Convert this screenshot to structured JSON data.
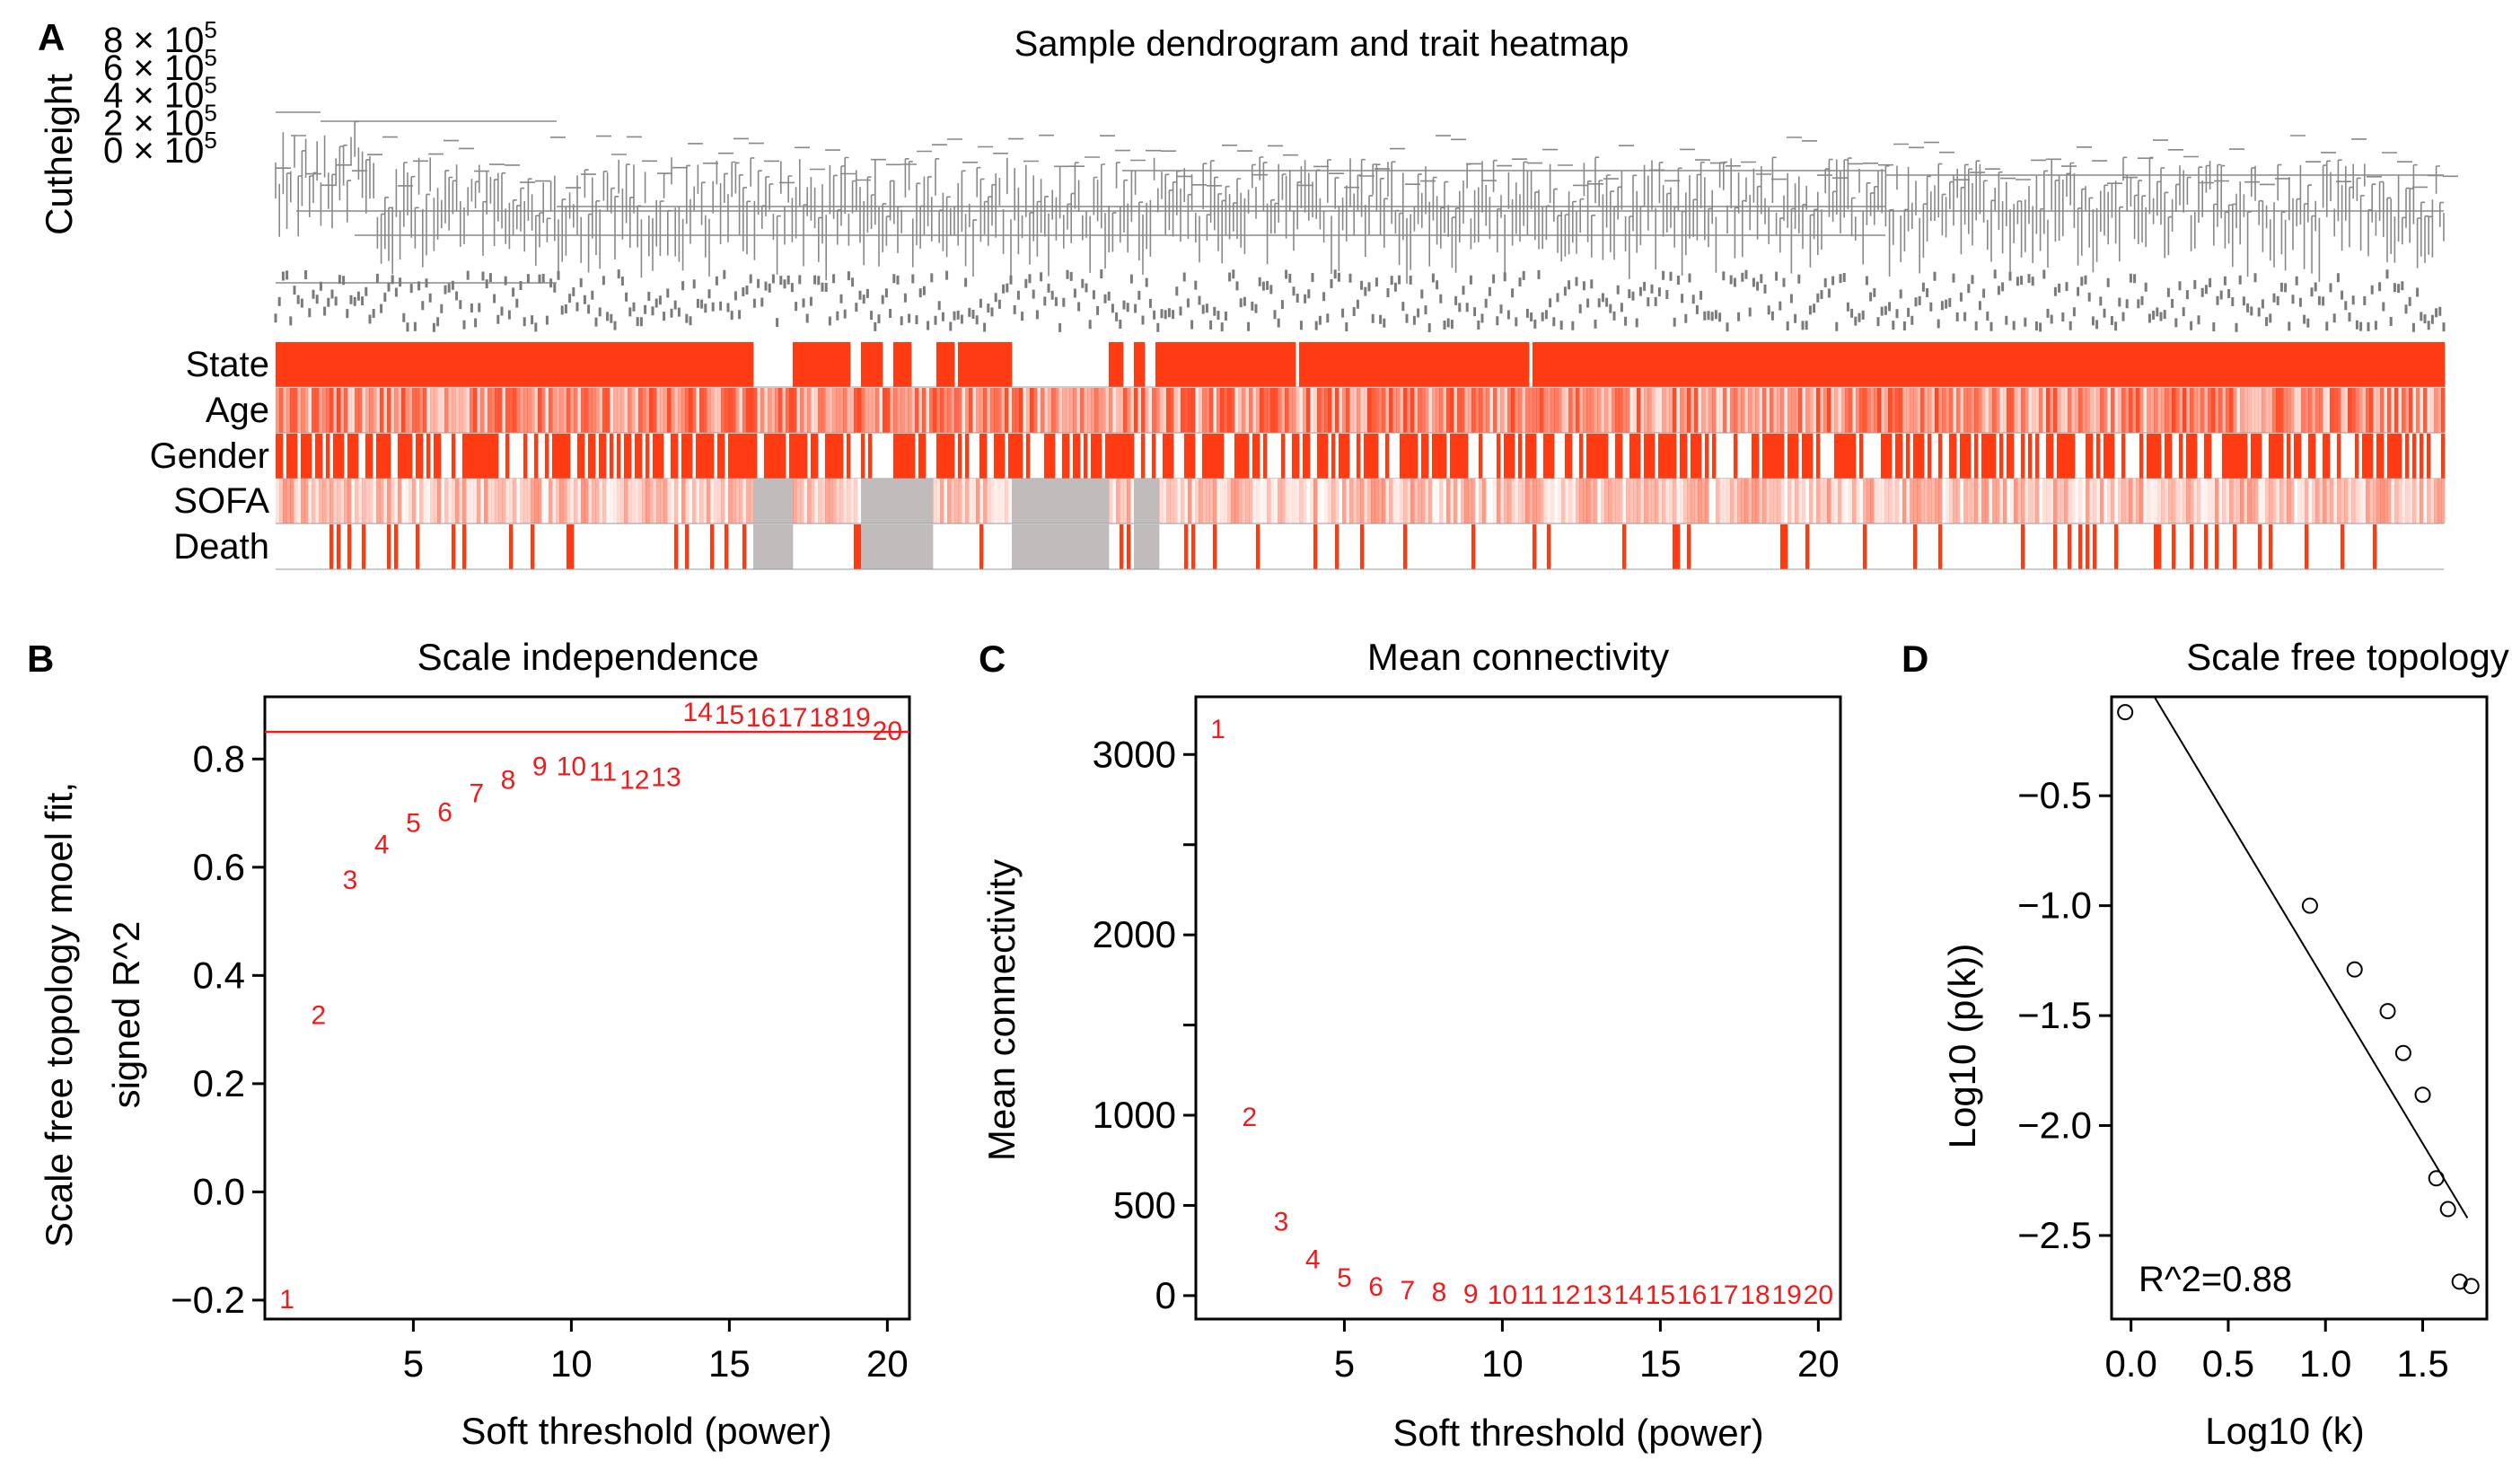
{
  "colors": {
    "trait_high": "#ff3b14",
    "na": "#c0bcbc",
    "point_red": "#ee1c1c",
    "line": "#000000",
    "dendro": "#888888"
  },
  "chart_data": [
    {
      "id": "A",
      "panel_label": "A",
      "type": "dendrogram_heatmap",
      "title": "Sample dendrogram and trait heatmap",
      "ylabel": "Cutheight",
      "y_ticks": [
        {
          "value": 800000,
          "label": "8 × 10",
          "exp": "5"
        },
        {
          "value": 600000,
          "label": "6 × 10",
          "exp": "5"
        },
        {
          "value": 400000,
          "label": "4 × 10",
          "exp": "5"
        },
        {
          "value": 200000,
          "label": "2 × 10",
          "exp": "5"
        },
        {
          "value": 0,
          "label": "0 × 10",
          "exp": "5"
        }
      ],
      "ylim": [
        0,
        800000
      ],
      "trait_rows": [
        "State",
        "Age",
        "Gender",
        "SOFA",
        "Death"
      ],
      "legend": "none"
    },
    {
      "id": "B",
      "panel_label": "B",
      "type": "scatter",
      "title": "Scale independence",
      "xlabel": "Soft threshold (power)",
      "ylabel_lines": [
        "Scale free topology moel fit,",
        "signed R^2"
      ],
      "xlim": [
        0.3,
        20.7
      ],
      "ylim": [
        -0.235,
        0.915
      ],
      "x_ticks": [
        5,
        10,
        15,
        20
      ],
      "y_ticks": [
        -0.2,
        0.0,
        0.2,
        0.4,
        0.6,
        0.8
      ],
      "y_tick_labels": [
        "−0.2",
        "0.0",
        "0.2",
        "0.4",
        "0.6",
        "0.8"
      ],
      "hline": 0.85,
      "points": [
        {
          "x": 1,
          "y": -0.195,
          "label": "1"
        },
        {
          "x": 2,
          "y": 0.33,
          "label": "2"
        },
        {
          "x": 3,
          "y": 0.58,
          "label": "3"
        },
        {
          "x": 4,
          "y": 0.645,
          "label": "4"
        },
        {
          "x": 5,
          "y": 0.685,
          "label": "5"
        },
        {
          "x": 6,
          "y": 0.705,
          "label": "6"
        },
        {
          "x": 7,
          "y": 0.74,
          "label": "7"
        },
        {
          "x": 8,
          "y": 0.765,
          "label": "8"
        },
        {
          "x": 9,
          "y": 0.79,
          "label": "9"
        },
        {
          "x": 10,
          "y": 0.79,
          "label": "10"
        },
        {
          "x": 11,
          "y": 0.78,
          "label": "11"
        },
        {
          "x": 12,
          "y": 0.765,
          "label": "12"
        },
        {
          "x": 13,
          "y": 0.77,
          "label": "13"
        },
        {
          "x": 14,
          "y": 0.89,
          "label": "14"
        },
        {
          "x": 15,
          "y": 0.885,
          "label": "15"
        },
        {
          "x": 16,
          "y": 0.88,
          "label": "16"
        },
        {
          "x": 17,
          "y": 0.88,
          "label": "17"
        },
        {
          "x": 18,
          "y": 0.88,
          "label": "18"
        },
        {
          "x": 19,
          "y": 0.88,
          "label": "19"
        },
        {
          "x": 20,
          "y": 0.855,
          "label": "20"
        }
      ]
    },
    {
      "id": "C",
      "panel_label": "C",
      "type": "scatter",
      "title": "Mean connectivity",
      "xlabel": "Soft threshold (power)",
      "ylabel_lines": [
        "Mean connectivity"
      ],
      "xlim": [
        0.3,
        20.7
      ],
      "ylim": [
        -130,
        3320
      ],
      "x_ticks": [
        5,
        10,
        15,
        20
      ],
      "y_ticks": [
        0,
        500,
        1000,
        2000,
        3000
      ],
      "y_tick_labels": [
        "0",
        "500",
        "1000",
        "2000",
        "3000"
      ],
      "y_minor_ticks": [
        1500,
        2500
      ],
      "points": [
        {
          "x": 1,
          "y": 3150,
          "label": "1"
        },
        {
          "x": 2,
          "y": 1000,
          "label": "2"
        },
        {
          "x": 3,
          "y": 420,
          "label": "3"
        },
        {
          "x": 4,
          "y": 210,
          "label": "4"
        },
        {
          "x": 5,
          "y": 110,
          "label": "5"
        },
        {
          "x": 6,
          "y": 60,
          "label": "6"
        },
        {
          "x": 7,
          "y": 40,
          "label": "7"
        },
        {
          "x": 8,
          "y": 30,
          "label": "8"
        },
        {
          "x": 9,
          "y": 20,
          "label": "9"
        },
        {
          "x": 10,
          "y": 15,
          "label": "10"
        },
        {
          "x": 11,
          "y": 15,
          "label": "11"
        },
        {
          "x": 12,
          "y": 15,
          "label": "12"
        },
        {
          "x": 13,
          "y": 15,
          "label": "13"
        },
        {
          "x": 14,
          "y": 15,
          "label": "14"
        },
        {
          "x": 15,
          "y": 15,
          "label": "15"
        },
        {
          "x": 16,
          "y": 15,
          "label": "16"
        },
        {
          "x": 17,
          "y": 15,
          "label": "17"
        },
        {
          "x": 18,
          "y": 15,
          "label": "18"
        },
        {
          "x": 19,
          "y": 15,
          "label": "19"
        },
        {
          "x": 20,
          "y": 15,
          "label": "20"
        }
      ]
    },
    {
      "id": "D",
      "panel_label": "D",
      "type": "scatter",
      "title": "Scale free topology",
      "xlabel": "Log10 (k)",
      "ylabel_lines": [
        "Log10 (p(k))"
      ],
      "xlim": [
        -0.1,
        1.83
      ],
      "ylim": [
        -2.88,
        -0.05
      ],
      "x_ticks": [
        0.0,
        0.5,
        1.0,
        1.5
      ],
      "x_tick_labels": [
        "0.0",
        "0.5",
        "1.0",
        "1.5"
      ],
      "y_ticks": [
        -0.5,
        -1.0,
        -1.5,
        -2.0,
        -2.5
      ],
      "y_tick_labels": [
        "−0.5",
        "−1.0",
        "−1.5",
        "−2.0",
        "−2.5"
      ],
      "fit_line": {
        "x1": 0.12,
        "y1": -0.05,
        "x2": 1.73,
        "y2": -2.42
      },
      "annotation": "R^2=0.88",
      "points": [
        {
          "x": -0.03,
          "y": -0.12
        },
        {
          "x": 0.92,
          "y": -1.0
        },
        {
          "x": 1.15,
          "y": -1.29
        },
        {
          "x": 1.32,
          "y": -1.48
        },
        {
          "x": 1.4,
          "y": -1.67
        },
        {
          "x": 1.5,
          "y": -1.86
        },
        {
          "x": 1.57,
          "y": -2.24
        },
        {
          "x": 1.63,
          "y": -2.38
        },
        {
          "x": 1.69,
          "y": -2.71
        },
        {
          "x": 1.75,
          "y": -2.73
        }
      ]
    }
  ]
}
